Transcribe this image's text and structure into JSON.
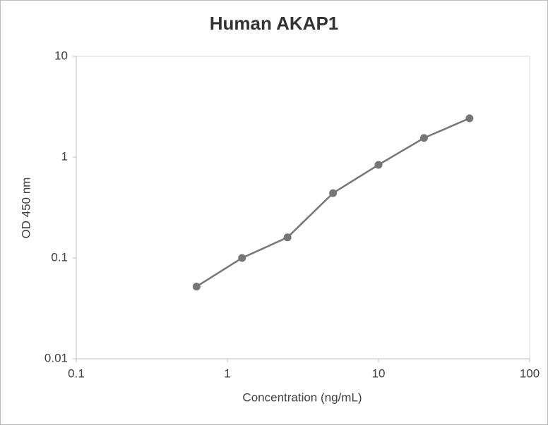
{
  "chart_data": {
    "type": "line",
    "title": "Human AKAP1",
    "x_label": "Concentration (ng/mL)",
    "y_label": "OD 450 nm",
    "xscale": "log",
    "yscale": "log",
    "x": [
      0.625,
      1.25,
      2.5,
      5,
      10,
      20,
      40
    ],
    "series": [
      {
        "name": "Human AKAP1",
        "color": "#767676",
        "values": [
          0.052,
          0.1,
          0.16,
          0.44,
          0.84,
          1.55,
          2.43
        ]
      }
    ],
    "xlim": [
      0.1,
      100
    ],
    "xticks": [
      0.1,
      1,
      10,
      100
    ],
    "ylim": [
      0.01,
      10
    ],
    "yticks": [
      0.01,
      0.1,
      1,
      10
    ],
    "legend": false
  }
}
